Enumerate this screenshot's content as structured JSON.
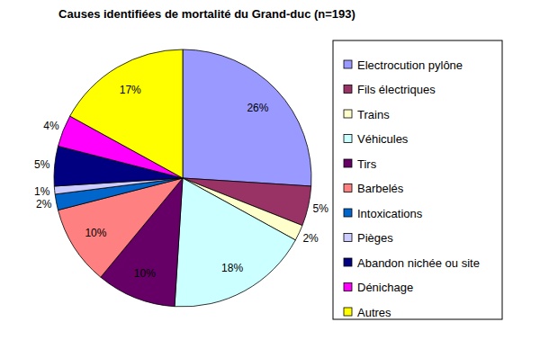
{
  "chart_data": {
    "type": "pie",
    "title": "Causes identifiées de mortalité du Grand-duc (n=193)",
    "categories": [
      "Electrocution pylône",
      "Fils électriques",
      "Trains",
      "Véhicules",
      "Tirs",
      "Barbelés",
      "Intoxications",
      "Pièges",
      "Abandon nichée ou site",
      "Dénichage",
      "Autres"
    ],
    "values": [
      26,
      5,
      2,
      18,
      10,
      10,
      2,
      1,
      5,
      4,
      17
    ],
    "value_labels": [
      "26%",
      "5%",
      "2%",
      "18%",
      "10%",
      "10%",
      "2%",
      "1%",
      "5%",
      "4%",
      "17%"
    ],
    "colors": [
      "#9999ff",
      "#993366",
      "#ffffcc",
      "#ccffff",
      "#660066",
      "#ff8080",
      "#0066cc",
      "#ccccff",
      "#000080",
      "#ff00ff",
      "#ffff00"
    ],
    "data_labels": true,
    "legend": "right"
  }
}
